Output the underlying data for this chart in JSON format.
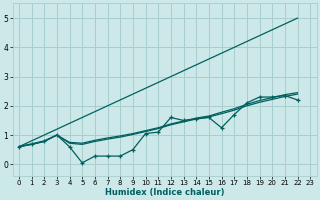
{
  "xlabel": "Humidex (Indice chaleur)",
  "xlim": [
    -0.5,
    23.5
  ],
  "ylim": [
    -0.4,
    5.5
  ],
  "yticks": [
    0,
    1,
    2,
    3,
    4,
    5
  ],
  "xticks": [
    0,
    1,
    2,
    3,
    4,
    5,
    6,
    7,
    8,
    9,
    10,
    11,
    12,
    13,
    14,
    15,
    16,
    17,
    18,
    19,
    20,
    21,
    22,
    23
  ],
  "bg_color": "#cce8e8",
  "grid_color": "#a8cece",
  "line_color": "#006060",
  "line1": {
    "x": [
      0,
      22
    ],
    "y": [
      0.6,
      5.0
    ]
  },
  "line2": {
    "x": [
      0,
      1,
      2,
      3,
      4,
      5,
      6,
      7,
      8,
      9,
      10,
      11,
      12,
      13,
      14,
      15,
      16,
      17,
      18,
      19,
      20,
      21,
      22
    ],
    "y": [
      0.6,
      0.7,
      0.8,
      1.0,
      0.6,
      0.05,
      0.28,
      0.28,
      0.28,
      0.5,
      1.05,
      1.1,
      1.6,
      1.5,
      1.55,
      1.6,
      1.25,
      1.7,
      2.1,
      2.3,
      2.3,
      2.35,
      2.2
    ]
  },
  "line3": {
    "x": [
      0,
      1,
      2,
      3,
      4,
      5,
      6,
      7,
      8,
      9,
      10,
      11,
      12,
      13,
      14,
      15,
      16,
      17,
      18,
      19,
      20,
      21,
      22
    ],
    "y": [
      0.6,
      0.68,
      0.78,
      1.0,
      0.75,
      0.72,
      0.82,
      0.9,
      0.97,
      1.05,
      1.15,
      1.25,
      1.38,
      1.48,
      1.58,
      1.65,
      1.78,
      1.9,
      2.05,
      2.18,
      2.28,
      2.38,
      2.45
    ]
  },
  "line4": {
    "x": [
      0,
      1,
      2,
      3,
      4,
      5,
      6,
      7,
      8,
      9,
      10,
      11,
      12,
      13,
      14,
      15,
      16,
      17,
      18,
      19,
      20,
      21,
      22
    ],
    "y": [
      0.6,
      0.68,
      0.78,
      1.0,
      0.72,
      0.68,
      0.78,
      0.86,
      0.93,
      1.02,
      1.12,
      1.22,
      1.35,
      1.45,
      1.55,
      1.62,
      1.73,
      1.85,
      2.0,
      2.12,
      2.22,
      2.32,
      2.4
    ]
  }
}
